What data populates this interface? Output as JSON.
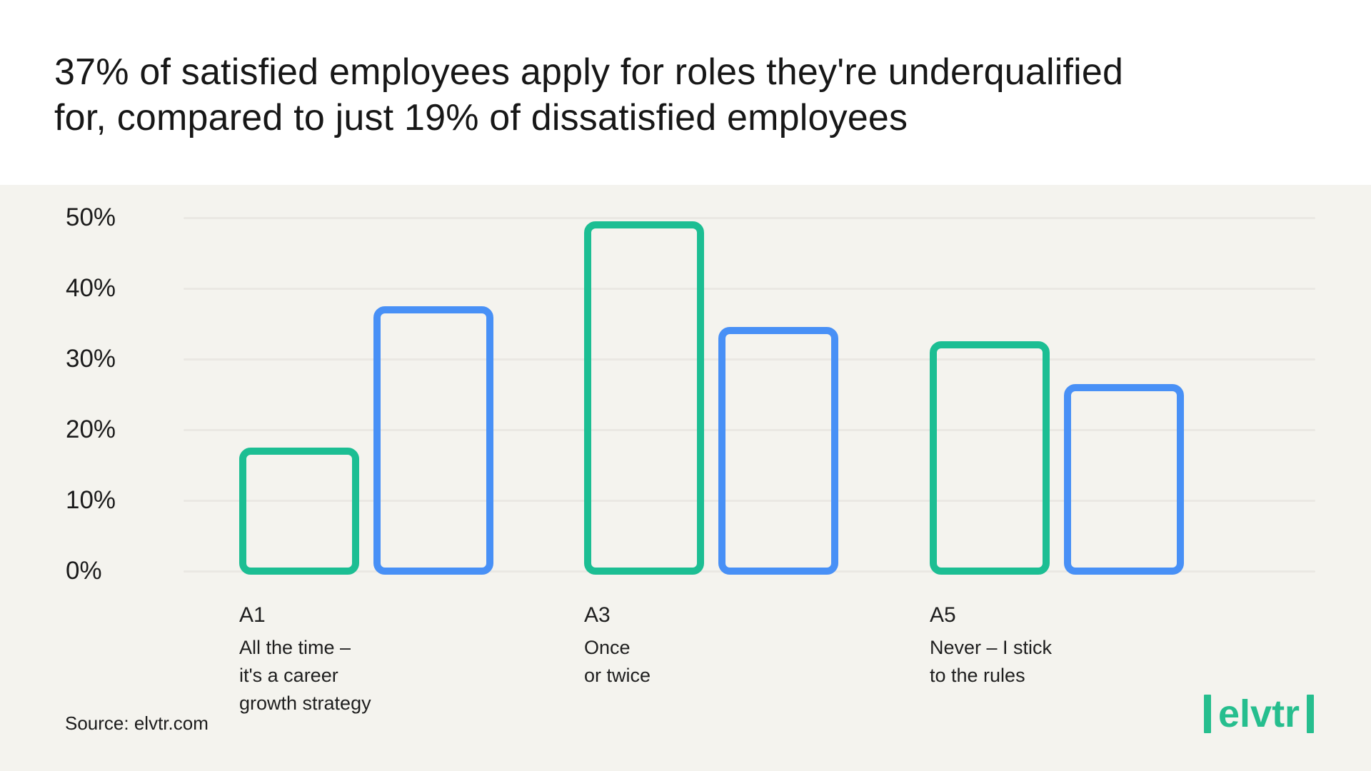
{
  "header": {
    "title": "37% of satisfied employees apply for roles they're underqualified for, compared to just 19% of dissatisfied employees",
    "title_lines": [
      "37% of satisfied employees apply for roles they're underqualified",
      "for, compared to just 19% of dissatisfied employees"
    ]
  },
  "chart_data": {
    "type": "bar",
    "title": "37% of satisfied employees apply for roles they're underqualified for, compared to just 19% of dissatisfied employees",
    "bar_style": "outlined",
    "value_suffix": "%",
    "categories": [
      {
        "code": "A1",
        "label": "All the time – it's a career growth strategy",
        "label_lines": [
          "All the time –",
          "it's a career",
          "growth strategy"
        ]
      },
      {
        "code": "A3",
        "label": "Once or twice",
        "label_lines": [
          "Once",
          "or twice"
        ]
      },
      {
        "code": "A5",
        "label": "Never – I stick to the rules",
        "label_lines": [
          "Never – I stick",
          "to the rules"
        ]
      }
    ],
    "series": [
      {
        "name": "green",
        "color": "#1cbe93",
        "values": [
          17,
          49,
          32
        ]
      },
      {
        "name": "blue",
        "color": "#4890f6",
        "values": [
          37,
          34,
          26
        ]
      }
    ],
    "yticks": [
      0,
      10,
      20,
      30,
      40,
      50
    ],
    "ytick_labels": [
      "0%",
      "10%",
      "20%",
      "30%",
      "40%",
      "50%"
    ],
    "ylim": [
      0,
      50
    ],
    "xlabel": "",
    "ylabel": "",
    "grid": true,
    "legend": false
  },
  "source": {
    "label": "Source: elvtr.com"
  },
  "logo": {
    "text": "elvtr",
    "color": "#26be8e"
  }
}
